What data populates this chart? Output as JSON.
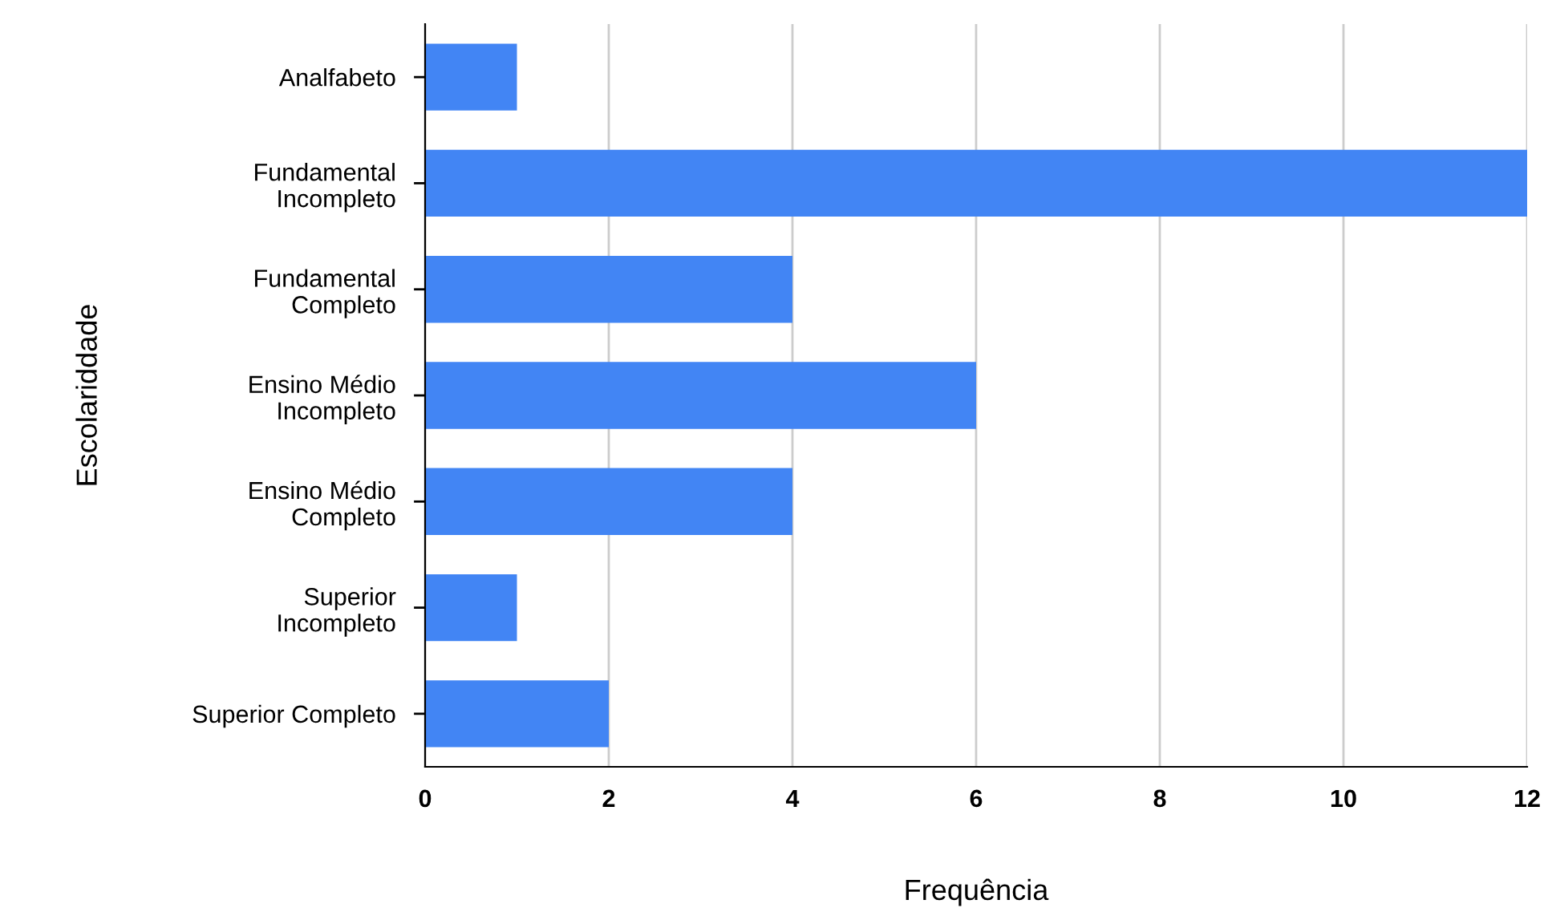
{
  "chart_data": {
    "type": "bar",
    "orientation": "horizontal",
    "categories": [
      "Analfabeto",
      "Fundamental\nIncompleto",
      "Fundamental\nCompleto",
      "Ensino Médio\nIncompleto",
      "Ensino Médio\nCompleto",
      "Superior\nIncompleto",
      "Superior Completo"
    ],
    "values": [
      1,
      12,
      4,
      6,
      4,
      1,
      2
    ],
    "color": "#4285f4",
    "xlim": [
      0,
      12
    ],
    "xticks": [
      0,
      2,
      4,
      6,
      8,
      10,
      12
    ],
    "xlabel": "Frequência",
    "ylabel": "Escolariddade",
    "grid": "x",
    "legend": false
  }
}
